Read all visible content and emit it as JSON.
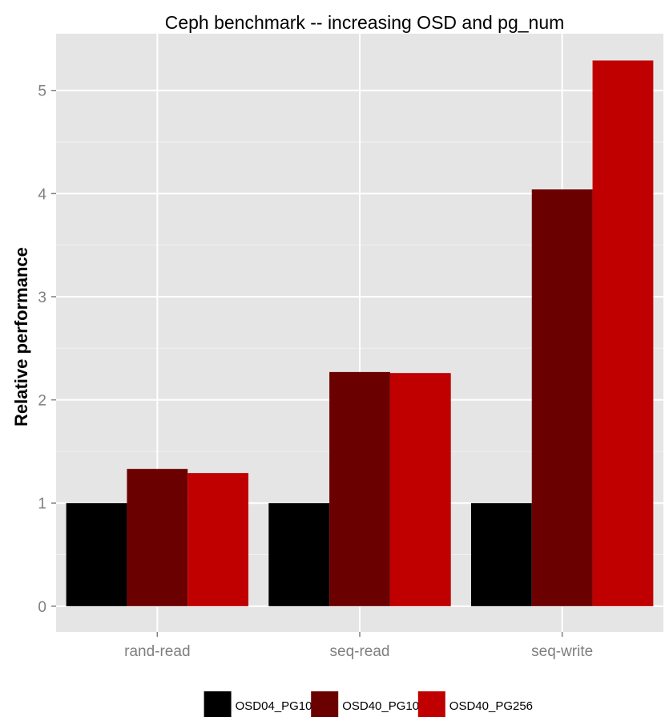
{
  "chart_data": {
    "type": "bar",
    "title": "Ceph benchmark -- increasing OSD and pg_num",
    "xlabel": "",
    "ylabel": "Relative performance",
    "categories": [
      "rand-read",
      "seq-read",
      "seq-write"
    ],
    "series": [
      {
        "name": "OSD04_PG100",
        "color": "#000000",
        "values": [
          1.0,
          1.0,
          1.0
        ]
      },
      {
        "name": "OSD40_PG100",
        "color": "#6b0000",
        "values": [
          1.33,
          2.27,
          4.04
        ]
      },
      {
        "name": "OSD40_PG256",
        "color": "#c00000",
        "values": [
          1.29,
          2.26,
          5.29
        ]
      }
    ],
    "ylim": [
      -0.25,
      5.55
    ],
    "yticks": [
      0,
      1,
      2,
      3,
      4,
      5
    ],
    "grid": true,
    "panel_background": "#e5e5e5",
    "legend_position": "bottom"
  }
}
